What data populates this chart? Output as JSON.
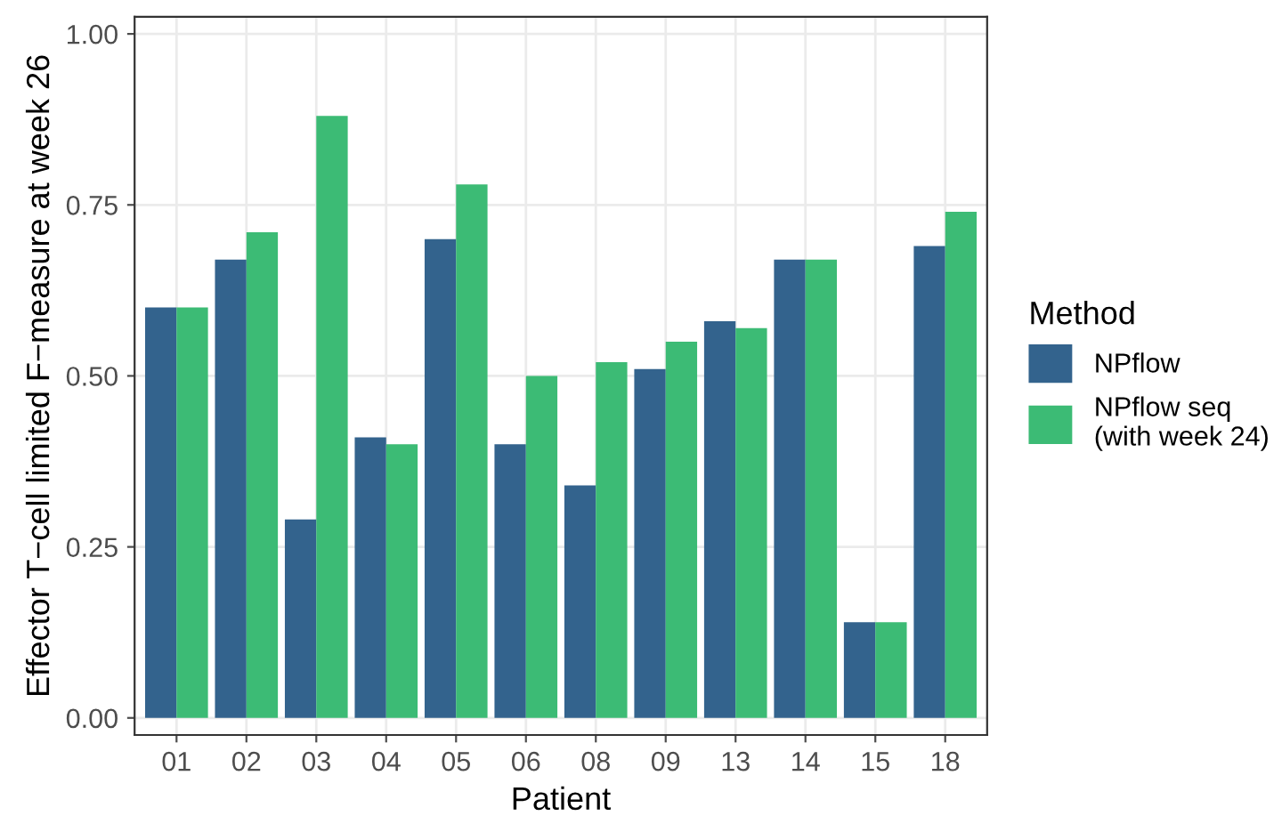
{
  "chart_data": {
    "type": "bar",
    "xlabel": "Patient",
    "ylabel": "Effector T−cell limited F−measure at week 26",
    "legend_title": "Method",
    "categories": [
      "01",
      "02",
      "03",
      "04",
      "05",
      "06",
      "08",
      "09",
      "13",
      "14",
      "15",
      "18"
    ],
    "series": [
      {
        "name": "NPflow",
        "color": "#33638d",
        "values": [
          0.6,
          0.67,
          0.29,
          0.41,
          0.7,
          0.4,
          0.34,
          0.51,
          0.58,
          0.67,
          0.14,
          0.69
        ]
      },
      {
        "name": "NPflow seq\n(with week 24)",
        "color": "#3cbb75",
        "values": [
          0.6,
          0.71,
          0.88,
          0.4,
          0.78,
          0.5,
          0.52,
          0.55,
          0.57,
          0.67,
          0.14,
          0.74
        ]
      }
    ],
    "ylim": [
      -0.025,
      1.025
    ],
    "yticks": [
      {
        "value": 0,
        "label": "0.00"
      },
      {
        "value": 0.25,
        "label": "0.25"
      },
      {
        "value": 0.5,
        "label": "0.50"
      },
      {
        "value": 0.75,
        "label": "0.75"
      },
      {
        "value": 1,
        "label": "1.00"
      }
    ],
    "grid": true,
    "legend": "right"
  }
}
